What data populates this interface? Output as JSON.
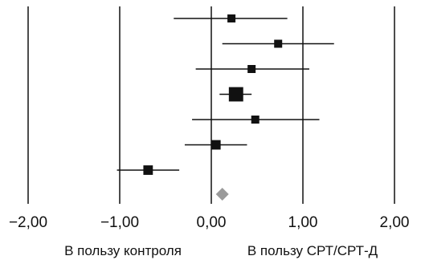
{
  "chart_data": {
    "type": "forest",
    "title": "",
    "xlim": [
      -2.2,
      2.3
    ],
    "x_ticks": [
      -2,
      -1,
      0,
      1,
      2
    ],
    "x_tick_labels": [
      "−2,00",
      "−1,00",
      "0,00",
      "1,00",
      "2,00"
    ],
    "grid_vertical": true,
    "label_left": "В пользу контроля",
    "label_right": "В пользу СРТ/СРТ-Д",
    "studies": [
      {
        "estimate": 0.22,
        "ci_low": -0.41,
        "ci_high": 0.83,
        "weight": 1.0
      },
      {
        "estimate": 0.73,
        "ci_low": 0.12,
        "ci_high": 1.34,
        "weight": 1.0
      },
      {
        "estimate": 0.44,
        "ci_low": -0.17,
        "ci_high": 1.07,
        "weight": 1.0
      },
      {
        "estimate": 0.27,
        "ci_low": 0.09,
        "ci_high": 0.44,
        "weight": 3.2
      },
      {
        "estimate": 0.48,
        "ci_low": -0.21,
        "ci_high": 1.18,
        "weight": 1.0
      },
      {
        "estimate": 0.05,
        "ci_low": -0.29,
        "ci_high": 0.39,
        "weight": 1.4
      },
      {
        "estimate": -0.69,
        "ci_low": -1.03,
        "ci_high": -0.35,
        "weight": 1.4
      }
    ],
    "pooled": {
      "estimate": 0.12
    },
    "colors": {
      "line": "#111111",
      "marker": "#111111",
      "pooled": "#9a9a9a"
    }
  }
}
